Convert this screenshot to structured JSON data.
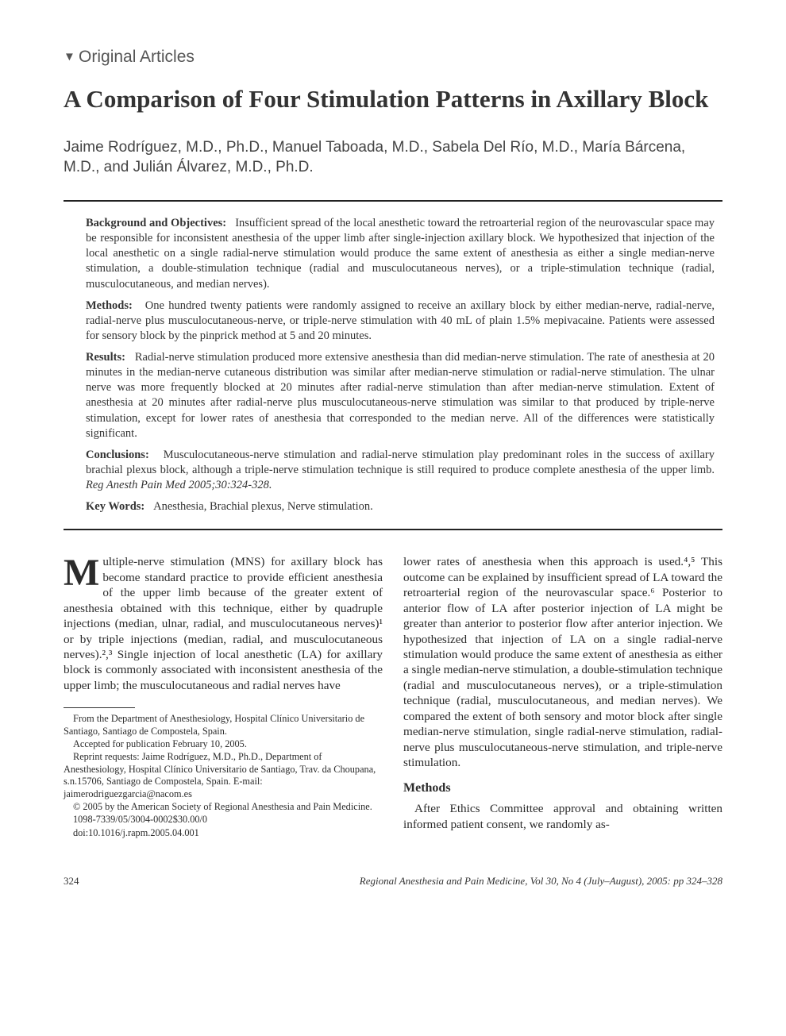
{
  "section_label": "Original Articles",
  "title": "A Comparison of Four Stimulation Patterns in Axillary Block",
  "authors": "Jaime Rodríguez, M.D., Ph.D., Manuel Taboada, M.D., Sabela Del Río, M.D., María Bárcena, M.D., and Julián Álvarez, M.D., Ph.D.",
  "abstract": {
    "background_label": "Background and Objectives:",
    "background": "Insufficient spread of the local anesthetic toward the retroarterial region of the neurovascular space may be responsible for inconsistent anesthesia of the upper limb after single-injection axillary block. We hypothesized that injection of the local anesthetic on a single radial-nerve stimulation would produce the same extent of anesthesia as either a single median-nerve stimulation, a double-stimulation technique (radial and musculocutaneous nerves), or a triple-stimulation technique (radial, musculocutaneous, and median nerves).",
    "methods_label": "Methods:",
    "methods": "One hundred twenty patients were randomly assigned to receive an axillary block by either median-nerve, radial-nerve, radial-nerve plus musculocutaneous-nerve, or triple-nerve stimulation with 40 mL of plain 1.5% mepivacaine. Patients were assessed for sensory block by the pinprick method at 5 and 20 minutes.",
    "results_label": "Results:",
    "results": "Radial-nerve stimulation produced more extensive anesthesia than did median-nerve stimulation. The rate of anesthesia at 20 minutes in the median-nerve cutaneous distribution was similar after median-nerve stimulation or radial-nerve stimulation. The ulnar nerve was more frequently blocked at 20 minutes after radial-nerve stimulation than after median-nerve stimulation. Extent of anesthesia at 20 minutes after radial-nerve plus musculocutaneous-nerve stimulation was similar to that produced by triple-nerve stimulation, except for lower rates of anesthesia that corresponded to the median nerve. All of the differences were statistically significant.",
    "conclusions_label": "Conclusions:",
    "conclusions": "Musculocutaneous-nerve stimulation and radial-nerve stimulation play predominant roles in the success of axillary brachial plexus block, although a triple-nerve stimulation technique is still required to produce complete anesthesia of the upper limb.",
    "citation": "Reg Anesth Pain Med 2005;30:324-328.",
    "keywords_label": "Key Words:",
    "keywords": "Anesthesia, Brachial plexus, Nerve stimulation."
  },
  "body": {
    "dropcap": "M",
    "col1_p1": "ultiple-nerve stimulation (MNS) for axillary block has become standard practice to provide efficient anesthesia of the upper limb because of the greater extent of anesthesia obtained with this technique, either by quadruple injections (median, ulnar, radial, and musculocutaneous nerves)¹ or by triple injections (median, radial, and musculocutaneous nerves).²,³ Single injection of local anesthetic (LA) for axillary block is commonly associated with inconsistent anesthesia of the upper limb; the musculocutaneous and radial nerves have",
    "col2_p1": "lower rates of anesthesia when this approach is used.⁴,⁵ This outcome can be explained by insufficient spread of LA toward the retroarterial region of the neurovascular space.⁶ Posterior to anterior flow of LA after posterior injection of LA might be greater than anterior to posterior flow after anterior injection. We hypothesized that injection of LA on a single radial-nerve stimulation would produce the same extent of anesthesia as either a single median-nerve stimulation, a double-stimulation technique (radial and musculocutaneous nerves), or a triple-stimulation technique (radial, musculocutaneous, and median nerves). We compared the extent of both sensory and motor block after single median-nerve stimulation, single radial-nerve stimulation, radial-nerve plus musculocutaneous-nerve stimulation, and triple-nerve stimulation.",
    "methods_head": "Methods",
    "col2_p2": "After Ethics Committee approval and obtaining written informed patient consent, we randomly as-"
  },
  "footnotes": {
    "l1": "From the Department of Anesthesiology, Hospital Clínico Universitario de Santiago, Santiago de Compostela, Spain.",
    "l2": "Accepted for publication February 10, 2005.",
    "l3": "Reprint requests: Jaime Rodríguez, M.D., Ph.D., Department of Anesthesiology, Hospital Clínico Universitario de Santiago, Trav. da Choupana, s.n.15706, Santiago de Compostela, Spain. E-mail: jaimerodriguezgarcia@nacom.es",
    "l4": "© 2005 by the American Society of Regional Anesthesia and Pain Medicine.",
    "l5": "1098-7339/05/3004-0002$30.00/0",
    "l6": "doi:10.1016/j.rapm.2005.04.001"
  },
  "footer": {
    "page": "324",
    "journal": "Regional Anesthesia and Pain Medicine, Vol 30, No 4 (July–August), 2005: pp 324–328"
  }
}
